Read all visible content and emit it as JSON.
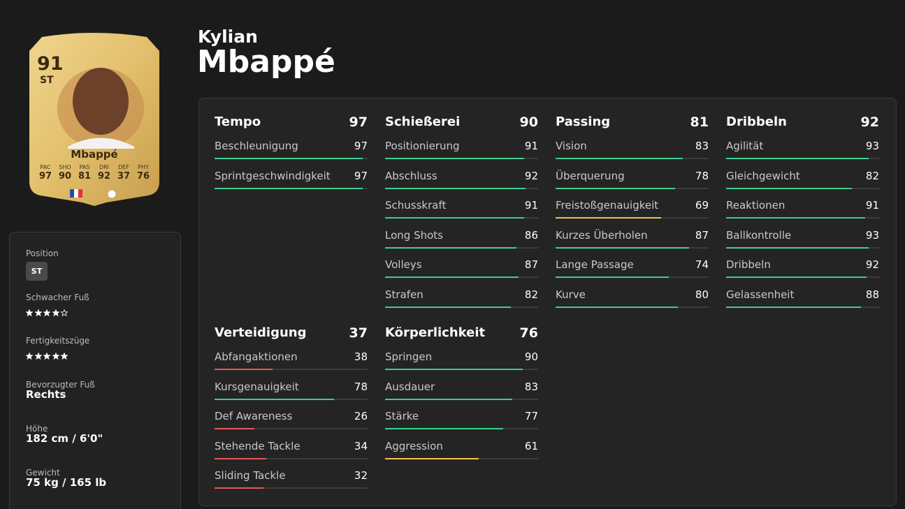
{
  "card": {
    "rating": 91,
    "position": "ST",
    "name": "Mbappé",
    "stats": [
      {
        "label": "PAC",
        "value": 97
      },
      {
        "label": "SHO",
        "value": 90
      },
      {
        "label": "PAS",
        "value": 81
      },
      {
        "label": "DRI",
        "value": 92
      },
      {
        "label": "DEF",
        "value": 37
      },
      {
        "label": "PHY",
        "value": 76
      }
    ]
  },
  "header": {
    "first_name": "Kylian",
    "last_name": "Mbappé"
  },
  "info": [
    {
      "label": "Position",
      "value": "ST"
    },
    {
      "label": "Schwacher Fuß",
      "stars": 4
    },
    {
      "label": "Fertigkeitszüge",
      "stars": 5
    },
    {
      "label": "Bevorzugter Fuß",
      "value": "Rechts"
    },
    {
      "label": "Höhe",
      "value": "182 cm / 6'0\""
    },
    {
      "label": "Gewicht",
      "value": "75 kg / 165 lb"
    }
  ],
  "stat_groups": [
    {
      "name": "Tempo",
      "value": 97,
      "attributes": [
        {
          "name": "Beschleunigung",
          "value": 97
        },
        {
          "name": "Sprintgeschwindigkeit",
          "value": 97
        }
      ]
    },
    {
      "name": "Schießerei",
      "value": 90,
      "attributes": [
        {
          "name": "Positionierung",
          "value": 91
        },
        {
          "name": "Abschluss",
          "value": 92
        },
        {
          "name": "Schusskraft",
          "value": 91
        },
        {
          "name": "Long Shots",
          "value": 86
        },
        {
          "name": "Volleys",
          "value": 87
        },
        {
          "name": "Strafen",
          "value": 82
        }
      ]
    },
    {
      "name": "Passing",
      "value": 81,
      "attributes": [
        {
          "name": "Vision",
          "value": 83
        },
        {
          "name": "Überquerung",
          "value": 78
        },
        {
          "name": "Freistoßgenauigkeit",
          "value": 69
        },
        {
          "name": "Kurzes Überholen",
          "value": 87
        },
        {
          "name": "Lange Passage",
          "value": 74
        },
        {
          "name": "Kurve",
          "value": 80
        }
      ]
    },
    {
      "name": "Dribbeln",
      "value": 92,
      "attributes": [
        {
          "name": "Agilität",
          "value": 93
        },
        {
          "name": "Gleichgewicht",
          "value": 82
        },
        {
          "name": "Reaktionen",
          "value": 91
        },
        {
          "name": "Ballkontrolle",
          "value": 93
        },
        {
          "name": "Dribbeln",
          "value": 92
        },
        {
          "name": "Gelassenheit",
          "value": 88
        }
      ]
    },
    {
      "name": "Verteidigung",
      "value": 37,
      "attributes": [
        {
          "name": "Abfangaktionen",
          "value": 38
        },
        {
          "name": "Kursgenauigkeit",
          "value": 78
        },
        {
          "name": "Def Awareness",
          "value": 26
        },
        {
          "name": "Stehende Tackle",
          "value": 34
        },
        {
          "name": "Sliding Tackle",
          "value": 32
        }
      ]
    },
    {
      "name": "Körperlichkeit",
      "value": 76,
      "attributes": [
        {
          "name": "Springen",
          "value": 90
        },
        {
          "name": "Ausdauer",
          "value": 83
        },
        {
          "name": "Stärke",
          "value": 77
        },
        {
          "name": "Aggression",
          "value": 61
        }
      ]
    }
  ]
}
